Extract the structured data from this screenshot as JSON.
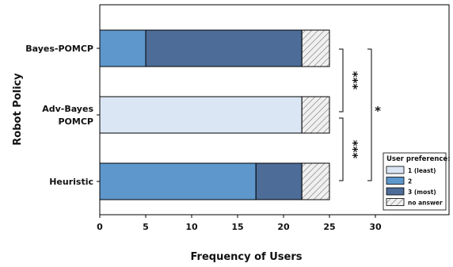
{
  "chart_data": {
    "type": "bar",
    "orientation": "horizontal",
    "stacked": true,
    "categories": [
      "Bayes-POMCP",
      "Adv-Bayes POMCP",
      "Heuristic"
    ],
    "category_lines": [
      [
        "Bayes-POMCP"
      ],
      [
        "Adv-Bayes",
        "POMCP"
      ],
      [
        "Heuristic"
      ]
    ],
    "series": [
      {
        "name": "1 (least)",
        "color": "#dae6f4",
        "values": [
          0,
          22,
          0
        ]
      },
      {
        "name": "2",
        "color": "#5e97cb",
        "values": [
          5,
          0,
          17
        ]
      },
      {
        "name": "3 (most)",
        "color": "#4d6c98",
        "values": [
          17,
          0,
          5
        ]
      },
      {
        "name": "no answer",
        "color": "#f0f0f0",
        "hatch": true,
        "values": [
          3,
          3,
          3
        ]
      }
    ],
    "xlabel": "Frequency of Users",
    "ylabel": "Robot Policy",
    "xlim": [
      0,
      30
    ],
    "xticks": [
      0,
      5,
      10,
      15,
      20,
      25,
      30
    ],
    "grid": false,
    "legend": {
      "title": "User preference:",
      "position": "bottom-right"
    },
    "annotations": [
      {
        "label": "***",
        "between": [
          "Bayes-POMCP",
          "Adv-Bayes POMCP"
        ]
      },
      {
        "label": "***",
        "between": [
          "Adv-Bayes POMCP",
          "Heuristic"
        ]
      },
      {
        "label": "*",
        "between": [
          "Bayes-POMCP",
          "Heuristic"
        ]
      }
    ]
  }
}
